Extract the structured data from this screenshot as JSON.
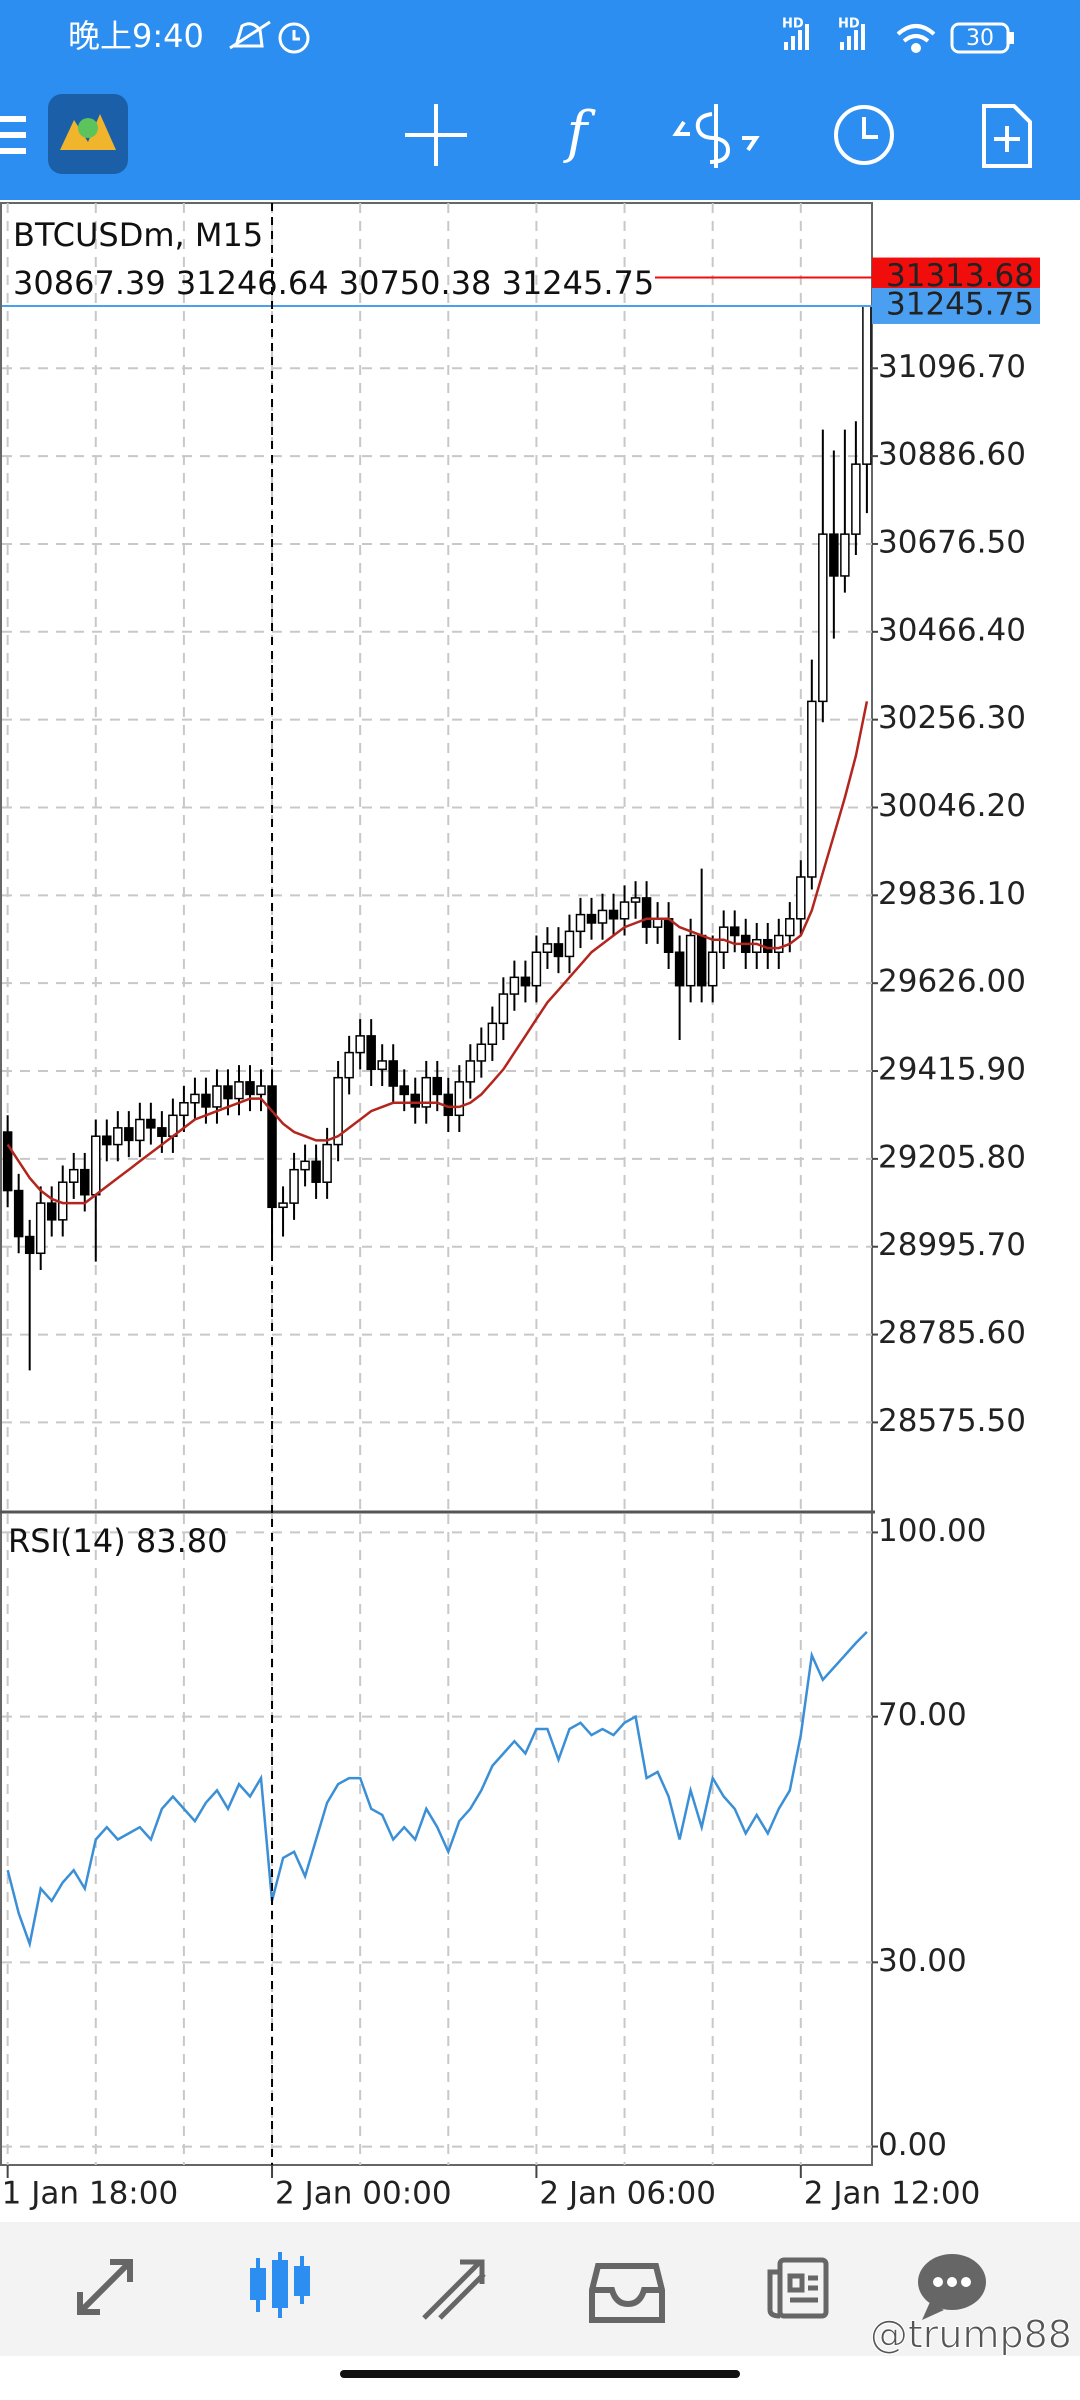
{
  "status_bar": {
    "time": "晚上9:40",
    "signal_labels": [
      "HD",
      "HD"
    ],
    "battery": "30"
  },
  "watermark": "@trump88",
  "chart_data": [
    {
      "type": "candlestick",
      "title": "BTCUSDm, M15",
      "ohlc_label": "30867.39 31246.64 30750.38 31245.75",
      "categories": [
        "1 Jan 18:00",
        null,
        null,
        null,
        null,
        null,
        null,
        null,
        null,
        null,
        null,
        null,
        null,
        null,
        null,
        null,
        null,
        null,
        null,
        null,
        null,
        null,
        null,
        null,
        "2 Jan 00:00",
        null,
        null,
        null,
        null,
        null,
        null,
        null,
        null,
        null,
        null,
        null,
        null,
        null,
        null,
        null,
        null,
        null,
        null,
        null,
        null,
        null,
        null,
        null,
        "2 Jan 06:00",
        null,
        null,
        null,
        null,
        null,
        null,
        null,
        null,
        null,
        null,
        null,
        null,
        null,
        null,
        null,
        null,
        null,
        null,
        null,
        null,
        null,
        null,
        null,
        "2 Jan 12:00",
        null,
        null,
        null,
        null,
        null,
        null
      ],
      "open": [
        29270,
        29130,
        29020,
        28980,
        29100,
        29060,
        29150,
        29180,
        29120,
        29260,
        29240,
        29280,
        29250,
        29300,
        29280,
        29260,
        29310,
        29340,
        29360,
        29330,
        29380,
        29350,
        29390,
        29360,
        29380,
        29090,
        29100,
        29180,
        29200,
        29150,
        29240,
        29400,
        29460,
        29500,
        29420,
        29440,
        29380,
        29360,
        29330,
        29400,
        29360,
        29310,
        29390,
        29440,
        29480,
        29530,
        29600,
        29640,
        29620,
        29700,
        29720,
        29690,
        29750,
        29790,
        29770,
        29800,
        29780,
        29820,
        29830,
        29760,
        29780,
        29700,
        29620,
        29740,
        29620,
        29700,
        29760,
        29740,
        29700,
        29730,
        29700,
        29740,
        29780,
        29880,
        30300,
        30700,
        30600,
        30700,
        30867.39
      ],
      "high": [
        29310,
        29170,
        29060,
        29140,
        29140,
        29190,
        29220,
        29220,
        29300,
        29300,
        29320,
        29320,
        29340,
        29340,
        29320,
        29350,
        29380,
        29400,
        29400,
        29420,
        29420,
        29430,
        29430,
        29420,
        29420,
        29140,
        29220,
        29240,
        29240,
        29280,
        29440,
        29500,
        29540,
        29540,
        29480,
        29480,
        29420,
        29400,
        29440,
        29440,
        29400,
        29430,
        29480,
        29520,
        29570,
        29640,
        29680,
        29680,
        29740,
        29760,
        29760,
        29790,
        29830,
        29830,
        29840,
        29840,
        29860,
        29870,
        29870,
        29820,
        29820,
        29740,
        29780,
        29900,
        29740,
        29800,
        29800,
        29780,
        29770,
        29770,
        29780,
        29820,
        29920,
        30400,
        30950,
        30900,
        30950,
        30970,
        31246.64
      ],
      "low": [
        29090,
        28980,
        28700,
        28940,
        29020,
        29020,
        29110,
        29080,
        28960,
        29200,
        29200,
        29210,
        29210,
        29240,
        29220,
        29220,
        29270,
        29300,
        29290,
        29290,
        29310,
        29310,
        29320,
        29320,
        28980,
        29020,
        29060,
        29140,
        29110,
        29110,
        29200,
        29360,
        29420,
        29380,
        29380,
        29340,
        29320,
        29290,
        29290,
        29320,
        29270,
        29270,
        29350,
        29400,
        29440,
        29490,
        29560,
        29580,
        29580,
        29660,
        29650,
        29650,
        29710,
        29730,
        29730,
        29740,
        29740,
        29780,
        29720,
        29720,
        29660,
        29490,
        29580,
        29580,
        29580,
        29660,
        29700,
        29660,
        29660,
        29660,
        29660,
        29700,
        29740,
        29850,
        30250,
        30450,
        30560,
        30650,
        30750.38
      ],
      "close": [
        29130,
        29020,
        28980,
        29100,
        29060,
        29150,
        29180,
        29120,
        29260,
        29240,
        29280,
        29250,
        29300,
        29280,
        29260,
        29310,
        29340,
        29360,
        29330,
        29380,
        29350,
        29390,
        29360,
        29380,
        29090,
        29100,
        29180,
        29200,
        29150,
        29240,
        29400,
        29460,
        29500,
        29420,
        29440,
        29380,
        29360,
        29330,
        29400,
        29360,
        29310,
        29390,
        29440,
        29480,
        29530,
        29600,
        29640,
        29620,
        29700,
        29720,
        29690,
        29750,
        29790,
        29770,
        29800,
        29780,
        29820,
        29830,
        29760,
        29780,
        29700,
        29620,
        29740,
        29620,
        29700,
        29760,
        29740,
        29700,
        29730,
        29700,
        29740,
        29780,
        29880,
        30300,
        30700,
        30600,
        30700,
        30867.39,
        31245.75
      ],
      "up_color": "#ffffff",
      "down_color": "#000000",
      "ma": {
        "color": "#b3261e",
        "values": [
          29240,
          29200,
          29160,
          29130,
          29110,
          29100,
          29100,
          29100,
          29120,
          29140,
          29160,
          29180,
          29200,
          29220,
          29240,
          29260,
          29280,
          29300,
          29310,
          29320,
          29330,
          29340,
          29350,
          29350,
          29320,
          29290,
          29270,
          29260,
          29250,
          29250,
          29260,
          29280,
          29300,
          29320,
          29330,
          29340,
          29340,
          29340,
          29340,
          29340,
          29330,
          29330,
          29340,
          29360,
          29390,
          29420,
          29460,
          29500,
          29540,
          29580,
          29610,
          29640,
          29670,
          29700,
          29720,
          29740,
          29760,
          29770,
          29780,
          29780,
          29780,
          29760,
          29750,
          29740,
          29730,
          29730,
          29720,
          29720,
          29720,
          29710,
          29710,
          29720,
          29740,
          29800,
          29890,
          29980,
          30070,
          30170,
          30300
        ]
      },
      "ask": {
        "value": 31313.68,
        "color": "#f20d0d"
      },
      "bid": {
        "value": 31245.75,
        "color": "#4a9ff0"
      },
      "ylim": [
        28366,
        31492
      ],
      "yticks": [
        {
          "value": 31096.7,
          "label": "31096.70"
        },
        {
          "value": 30886.6,
          "label": "30886.60"
        },
        {
          "value": 30676.5,
          "label": "30676.50"
        },
        {
          "value": 30466.4,
          "label": "30466.40"
        },
        {
          "value": 30256.3,
          "label": "30256.30"
        },
        {
          "value": 30046.2,
          "label": "30046.20"
        },
        {
          "value": 29836.1,
          "label": "29836.10"
        },
        {
          "value": 29626,
          "label": "29626.00"
        },
        {
          "value": 29415.9,
          "label": "29415.90"
        },
        {
          "value": 29205.8,
          "label": "29205.80"
        },
        {
          "value": 28995.7,
          "label": "28995.70"
        },
        {
          "value": 28785.6,
          "label": "28785.60"
        },
        {
          "value": 28575.5,
          "label": "28575.50"
        }
      ],
      "grid": true
    },
    {
      "type": "line",
      "title": "RSI(14) 83.80",
      "color": "#3a8fd6",
      "values": [
        45,
        38,
        33,
        42,
        40,
        43,
        45,
        42,
        50,
        52,
        50,
        51,
        52,
        50,
        55,
        57,
        55,
        53,
        56,
        58,
        55,
        59,
        57,
        60,
        40,
        47,
        48,
        44,
        50,
        56,
        59,
        60,
        60,
        55,
        54,
        50,
        52,
        50,
        55,
        52,
        48,
        53,
        55,
        58,
        62,
        64,
        66,
        64,
        68,
        68,
        63,
        68,
        69,
        67,
        68,
        67,
        69,
        70,
        60,
        61,
        57,
        50,
        58,
        52,
        60,
        57,
        55,
        51,
        54,
        51,
        55,
        58,
        67,
        80,
        76,
        78,
        80,
        82,
        83.8
      ],
      "ylim": [
        -3,
        103
      ],
      "yticks": [
        {
          "value": 100,
          "label": "100.00"
        },
        {
          "value": 70,
          "label": "70.00"
        },
        {
          "value": 30,
          "label": "30.00"
        },
        {
          "value": 0,
          "label": "0.00"
        }
      ],
      "grid": true
    }
  ]
}
